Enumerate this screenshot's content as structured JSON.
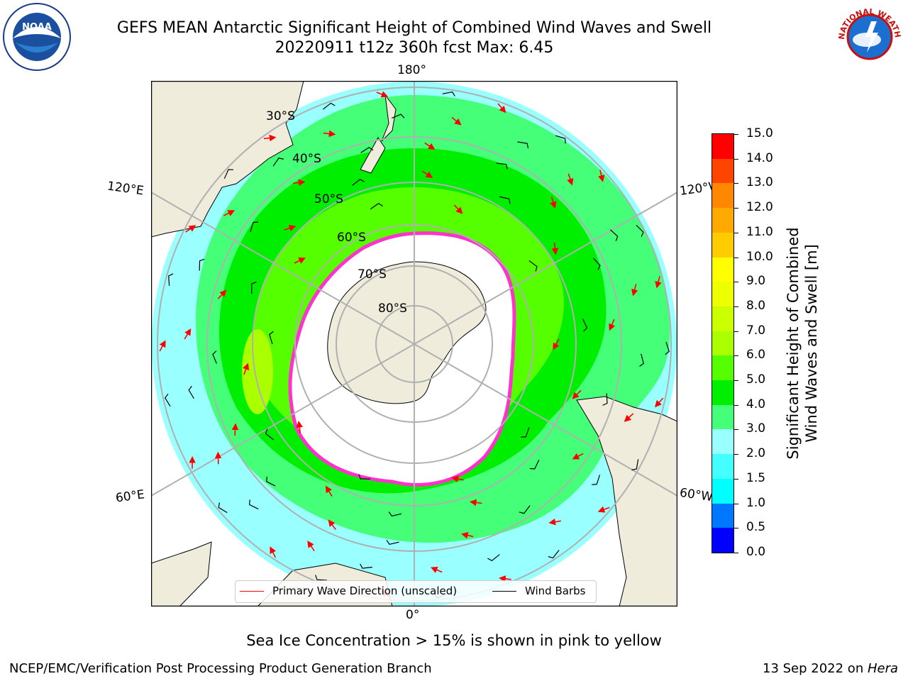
{
  "header": {
    "title_line1": "GEFS MEAN Antarctic Significant Height of Combined Wind Waves and Swell",
    "title_line2": "20220911 t12z 360h fcst   Max: 6.45"
  },
  "logos": {
    "left": "NOAA",
    "left_ring": "NATIONAL OCEANIC AND ATMOSPHERIC ADMINISTRATION · U.S. DEPARTMENT OF COMMERCE",
    "right_ring": "NATIONAL WEATHER SERVICE"
  },
  "map": {
    "projection": "south-polar-stereographic",
    "lon_labels": {
      "top": "180°",
      "bottom": "0°",
      "upper_left": "120°E",
      "lower_left": "60°E",
      "upper_right": "120°W",
      "lower_right": "60°W"
    },
    "lat_labels": [
      "30°S",
      "40°S",
      "50°S",
      "60°S",
      "70°S",
      "80°S"
    ],
    "colors": {
      "land": "#efecdc",
      "sea_ice": "#ffffff",
      "ice_edge": "#ff33cc",
      "grid": "#b0b0b0",
      "wave_arrow": "#ff0000",
      "wind_barb": "#000000"
    }
  },
  "colorbar": {
    "label_line1": "Significant Height of Combined",
    "label_line2": "Wind Waves and Swell [m]",
    "ticks": [
      "0.0",
      "0.5",
      "1.0",
      "1.5",
      "2.0",
      "3.0",
      "4.0",
      "5.0",
      "6.0",
      "7.0",
      "8.0",
      "9.0",
      "10.0",
      "11.0",
      "12.0",
      "13.0",
      "14.0",
      "15.0"
    ],
    "colors": [
      "#0000ff",
      "#0077ff",
      "#00ffff",
      "#44ffff",
      "#99ffff",
      "#44ff77",
      "#00ee00",
      "#55ff00",
      "#aaff00",
      "#ccff00",
      "#eeff00",
      "#ffff00",
      "#ffcc00",
      "#ffaa00",
      "#ff8800",
      "#ff4400",
      "#ff0000"
    ]
  },
  "legend": {
    "wave_label": "Primary Wave Direction (unscaled)",
    "wind_label": "Wind Barbs"
  },
  "subtitle": "Sea Ice Concentration > 15% is shown in pink to yellow",
  "footer": {
    "left": "NCEP/EMC/Verification Post Processing Product Generation Branch",
    "right_date": "13 Sep 2022 on ",
    "right_host": "Hera"
  }
}
